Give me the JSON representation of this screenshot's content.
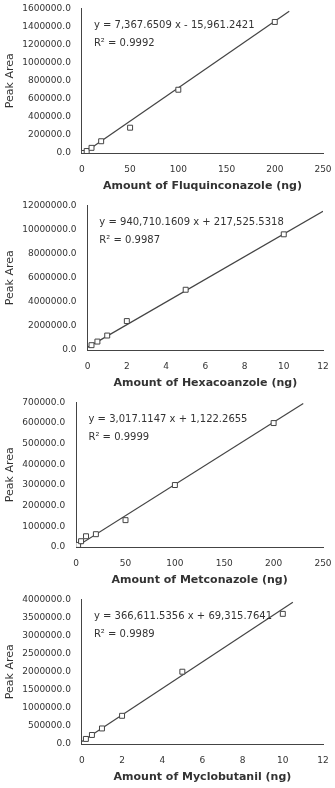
{
  "chart_data": [
    {
      "type": "scatter",
      "x_label": "Amount of Fluquinconazole (ng)",
      "y_label": "Peak Area",
      "annotations": [
        "y = 7,367.6509 x - 15,961.2421",
        "R² = 0.9992"
      ],
      "xlim": [
        0,
        250
      ],
      "ylim": [
        0,
        1600000
      ],
      "xticks": [
        0,
        50,
        100,
        150,
        200,
        250
      ],
      "yticks": [
        {
          "value": 0,
          "label": "0.0"
        },
        {
          "value": 200000,
          "label": "200000.0"
        },
        {
          "value": 400000,
          "label": "400000.0"
        },
        {
          "value": 600000,
          "label": "600000.0"
        },
        {
          "value": 800000,
          "label": "800000.0"
        },
        {
          "value": 1000000,
          "label": "1000000.0"
        },
        {
          "value": 1200000,
          "label": "1200000.0"
        },
        {
          "value": 1400000,
          "label": "1400000.0"
        },
        {
          "value": 1600000,
          "label": "1600000.0"
        }
      ],
      "grid": false,
      "series": [
        {
          "type": "line",
          "color": "#444444",
          "x": [
            2.5,
            215
          ],
          "values": [
            2457.88515,
            1568083.7014
          ]
        },
        {
          "type": "scatter",
          "marker": "square",
          "color": "#444444",
          "x": [
            2,
            5,
            10,
            20,
            50,
            100,
            200
          ],
          "values": [
            0,
            22000,
            57000,
            130000,
            280000,
            700000,
            1450000
          ]
        }
      ]
    },
    {
      "type": "scatter",
      "x_label": "Amount of Hexacoanzole (ng)",
      "y_label": "Peak Area",
      "annotations": [
        "y = 940,710.1609 x + 217,525.5318",
        "R² = 0.9987"
      ],
      "xlim": [
        0,
        12
      ],
      "ylim": [
        0,
        12000000
      ],
      "xticks": [
        0,
        2,
        4,
        6,
        8,
        10,
        12
      ],
      "yticks": [
        {
          "value": 0,
          "label": "0.0"
        },
        {
          "value": 2000000,
          "label": "2000000.0"
        },
        {
          "value": 4000000,
          "label": "4000000.0"
        },
        {
          "value": 6000000,
          "label": "6000000.0"
        },
        {
          "value": 8000000,
          "label": "8000000.0"
        },
        {
          "value": 10000000,
          "label": "10000000.0"
        },
        {
          "value": 12000000,
          "label": "12000000.0"
        }
      ],
      "grid": false,
      "series": [
        {
          "type": "line",
          "color": "#444444",
          "x": [
            0,
            12
          ],
          "values": [
            217525.5318,
            11506047.4626
          ]
        },
        {
          "type": "scatter",
          "marker": "square",
          "color": "#444444",
          "x": [
            0.2,
            0.5,
            1,
            2,
            5,
            10
          ],
          "values": [
            400000,
            700000,
            1200000,
            2400000,
            5000000,
            9600000
          ]
        }
      ]
    },
    {
      "type": "scatter",
      "x_label": "Amount of Metconazole (ng)",
      "y_label": "Peak Area",
      "annotations": [
        "y = 3,017.1147 x + 1,122.2655",
        "R² = 0.9999"
      ],
      "xlim": [
        0,
        250
      ],
      "ylim": [
        0,
        700000
      ],
      "xticks": [
        0,
        50,
        100,
        150,
        200,
        250
      ],
      "yticks": [
        {
          "value": 0,
          "label": "0.0"
        },
        {
          "value": 100000,
          "label": "100000.0"
        },
        {
          "value": 200000,
          "label": "200000.0"
        },
        {
          "value": 300000,
          "label": "300000.0"
        },
        {
          "value": 400000,
          "label": "400000.0"
        },
        {
          "value": 500000,
          "label": "500000.0"
        },
        {
          "value": 600000,
          "label": "600000.0"
        },
        {
          "value": 700000,
          "label": "700000.0"
        }
      ],
      "grid": false,
      "series": [
        {
          "type": "line",
          "color": "#444444",
          "x": [
            0,
            230
          ],
          "values": [
            1122.2655,
            695058.6465
          ]
        },
        {
          "type": "scatter",
          "marker": "square",
          "color": "#444444",
          "x": [
            2,
            5,
            10,
            20,
            50,
            100,
            200
          ],
          "values": [
            10000,
            28000,
            52000,
            62000,
            130000,
            300000,
            600000
          ]
        }
      ]
    },
    {
      "type": "scatter",
      "x_label": "Amount of Myclobutanil (ng)",
      "y_label": "Peak Area",
      "annotations": [
        "y = 366,611.5356 x + 69,315.7641",
        "R² = 0.9989"
      ],
      "xlim": [
        0,
        12
      ],
      "ylim": [
        0,
        4000000
      ],
      "xticks": [
        0,
        2,
        4,
        6,
        8,
        10,
        12
      ],
      "yticks": [
        {
          "value": 0,
          "label": "0.0"
        },
        {
          "value": 500000,
          "label": "500000.0"
        },
        {
          "value": 1000000,
          "label": "1000000.0"
        },
        {
          "value": 1500000,
          "label": "1500000.0"
        },
        {
          "value": 2000000,
          "label": "2000000.0"
        },
        {
          "value": 2500000,
          "label": "2500000.0"
        },
        {
          "value": 3000000,
          "label": "3000000.0"
        },
        {
          "value": 3500000,
          "label": "3500000.0"
        },
        {
          "value": 4000000,
          "label": "4000000.0"
        }
      ],
      "grid": false,
      "series": [
        {
          "type": "line",
          "color": "#444444",
          "x": [
            0,
            10.5
          ],
          "values": [
            69315.7641,
            3918736.8879
          ]
        },
        {
          "type": "scatter",
          "marker": "square",
          "color": "#444444",
          "x": [
            0.2,
            0.5,
            1,
            2,
            5,
            10
          ],
          "values": [
            140000,
            250000,
            430000,
            780000,
            2000000,
            3600000
          ]
        }
      ]
    }
  ]
}
